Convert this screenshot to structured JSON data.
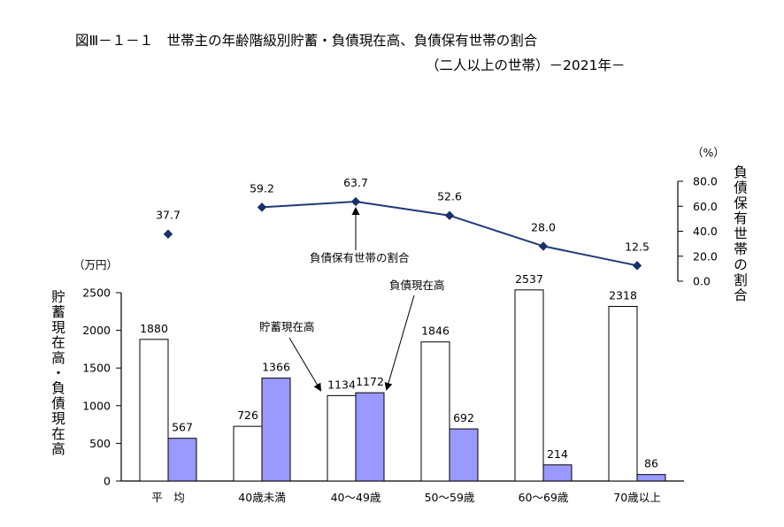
{
  "title_line1": "図Ⅲ－１－１　世帯主の年齢階級別貯蓄・負債現在高、負債保有世帯の割合",
  "title_line2": "（二人以上の世帯）－2021年－",
  "colors": {
    "savings_fill": "#ffffff",
    "debt_fill": "#9999ff",
    "line": "#1f3a7a",
    "marker": "#17306e",
    "axis": "#000000"
  },
  "chart_data": {
    "type": "bar",
    "categories": [
      "平　均",
      "40歳未満",
      "40～49歳",
      "50～59歳",
      "60～69歳",
      "70歳以上"
    ],
    "series": [
      {
        "name": "貯蓄現在高",
        "values": [
          1880,
          726,
          1134,
          1846,
          2537,
          2318
        ]
      },
      {
        "name": "負債現在高",
        "values": [
          567,
          1366,
          1172,
          692,
          214,
          86
        ]
      }
    ],
    "ylabel": "貯蓄現在高・負債現在高",
    "yunit": "（万円）",
    "ylim": [
      0,
      2500
    ],
    "yticks": [
      0,
      500,
      1000,
      1500,
      2000,
      2500
    ],
    "ytick_labels": [
      "0",
      "500",
      "1000",
      "1500",
      "2000",
      "2500"
    ],
    "secondary": {
      "type": "line",
      "name": "負債保有世帯の割合",
      "ylabel": "負債保有世帯の割合",
      "yunit": "（%）",
      "values": [
        37.7,
        59.2,
        63.7,
        52.6,
        28.0,
        12.5
      ],
      "value_labels": [
        "37.7",
        "59.2",
        "63.7",
        "52.6",
        "28.0",
        "12.5"
      ],
      "connected_from_index": 1,
      "ylim": [
        0,
        80
      ],
      "yticks": [
        0,
        20,
        40,
        60,
        80
      ],
      "ytick_labels": [
        "0.0",
        "20.0",
        "40.0",
        "60.0",
        "80.0"
      ]
    },
    "annotations": {
      "savings": "貯蓄現在高",
      "debt": "負債現在高",
      "ratio": "負債保有世帯の割合"
    },
    "grid": false
  }
}
